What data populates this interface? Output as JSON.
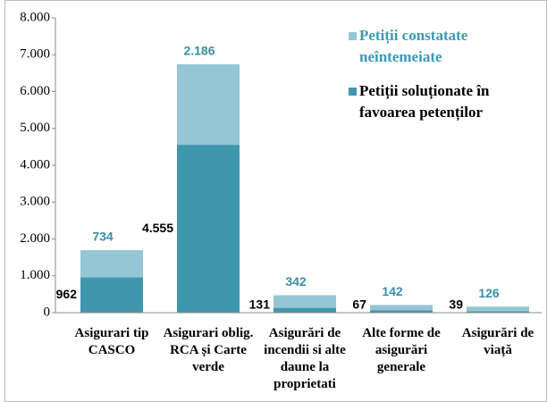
{
  "chart_data": {
    "type": "stacked_bar",
    "categories": [
      "Asigurari tip CASCO",
      "Asigurari oblig.  RCA și Carte verde",
      "Asigurări de incendii si alte daune la proprietati",
      "Alte forme de asigurări generale",
      "Asigurări de viață"
    ],
    "series": [
      {
        "name": "Petiții soluționate în favoarea petenților",
        "color": "#3f97ad",
        "values": [
          962,
          4555,
          131,
          67,
          39
        ],
        "value_labels": [
          "962",
          "4.555",
          "131",
          "67",
          "39"
        ]
      },
      {
        "name": "Petiții constatate neîntemeiate",
        "color": "#95c6d6",
        "values": [
          734,
          2186,
          342,
          142,
          126
        ],
        "value_labels": [
          "734",
          "2.186",
          "342",
          "142",
          "126"
        ]
      }
    ],
    "ylim": [
      0,
      8000
    ],
    "yticks": [
      0,
      {
        "value": 1000,
        "label": "1.000"
      },
      {
        "value": 2000,
        "label": "2.000"
      },
      {
        "value": 3000,
        "label": "3.000"
      },
      {
        "value": 4000,
        "label": "4.000"
      },
      {
        "value": 5000,
        "label": "5.000"
      },
      {
        "value": 6000,
        "label": "6.000"
      },
      {
        "value": 7000,
        "label": "7.000"
      },
      {
        "value": 8000,
        "label": "8.000"
      }
    ],
    "legend": "top-right"
  }
}
